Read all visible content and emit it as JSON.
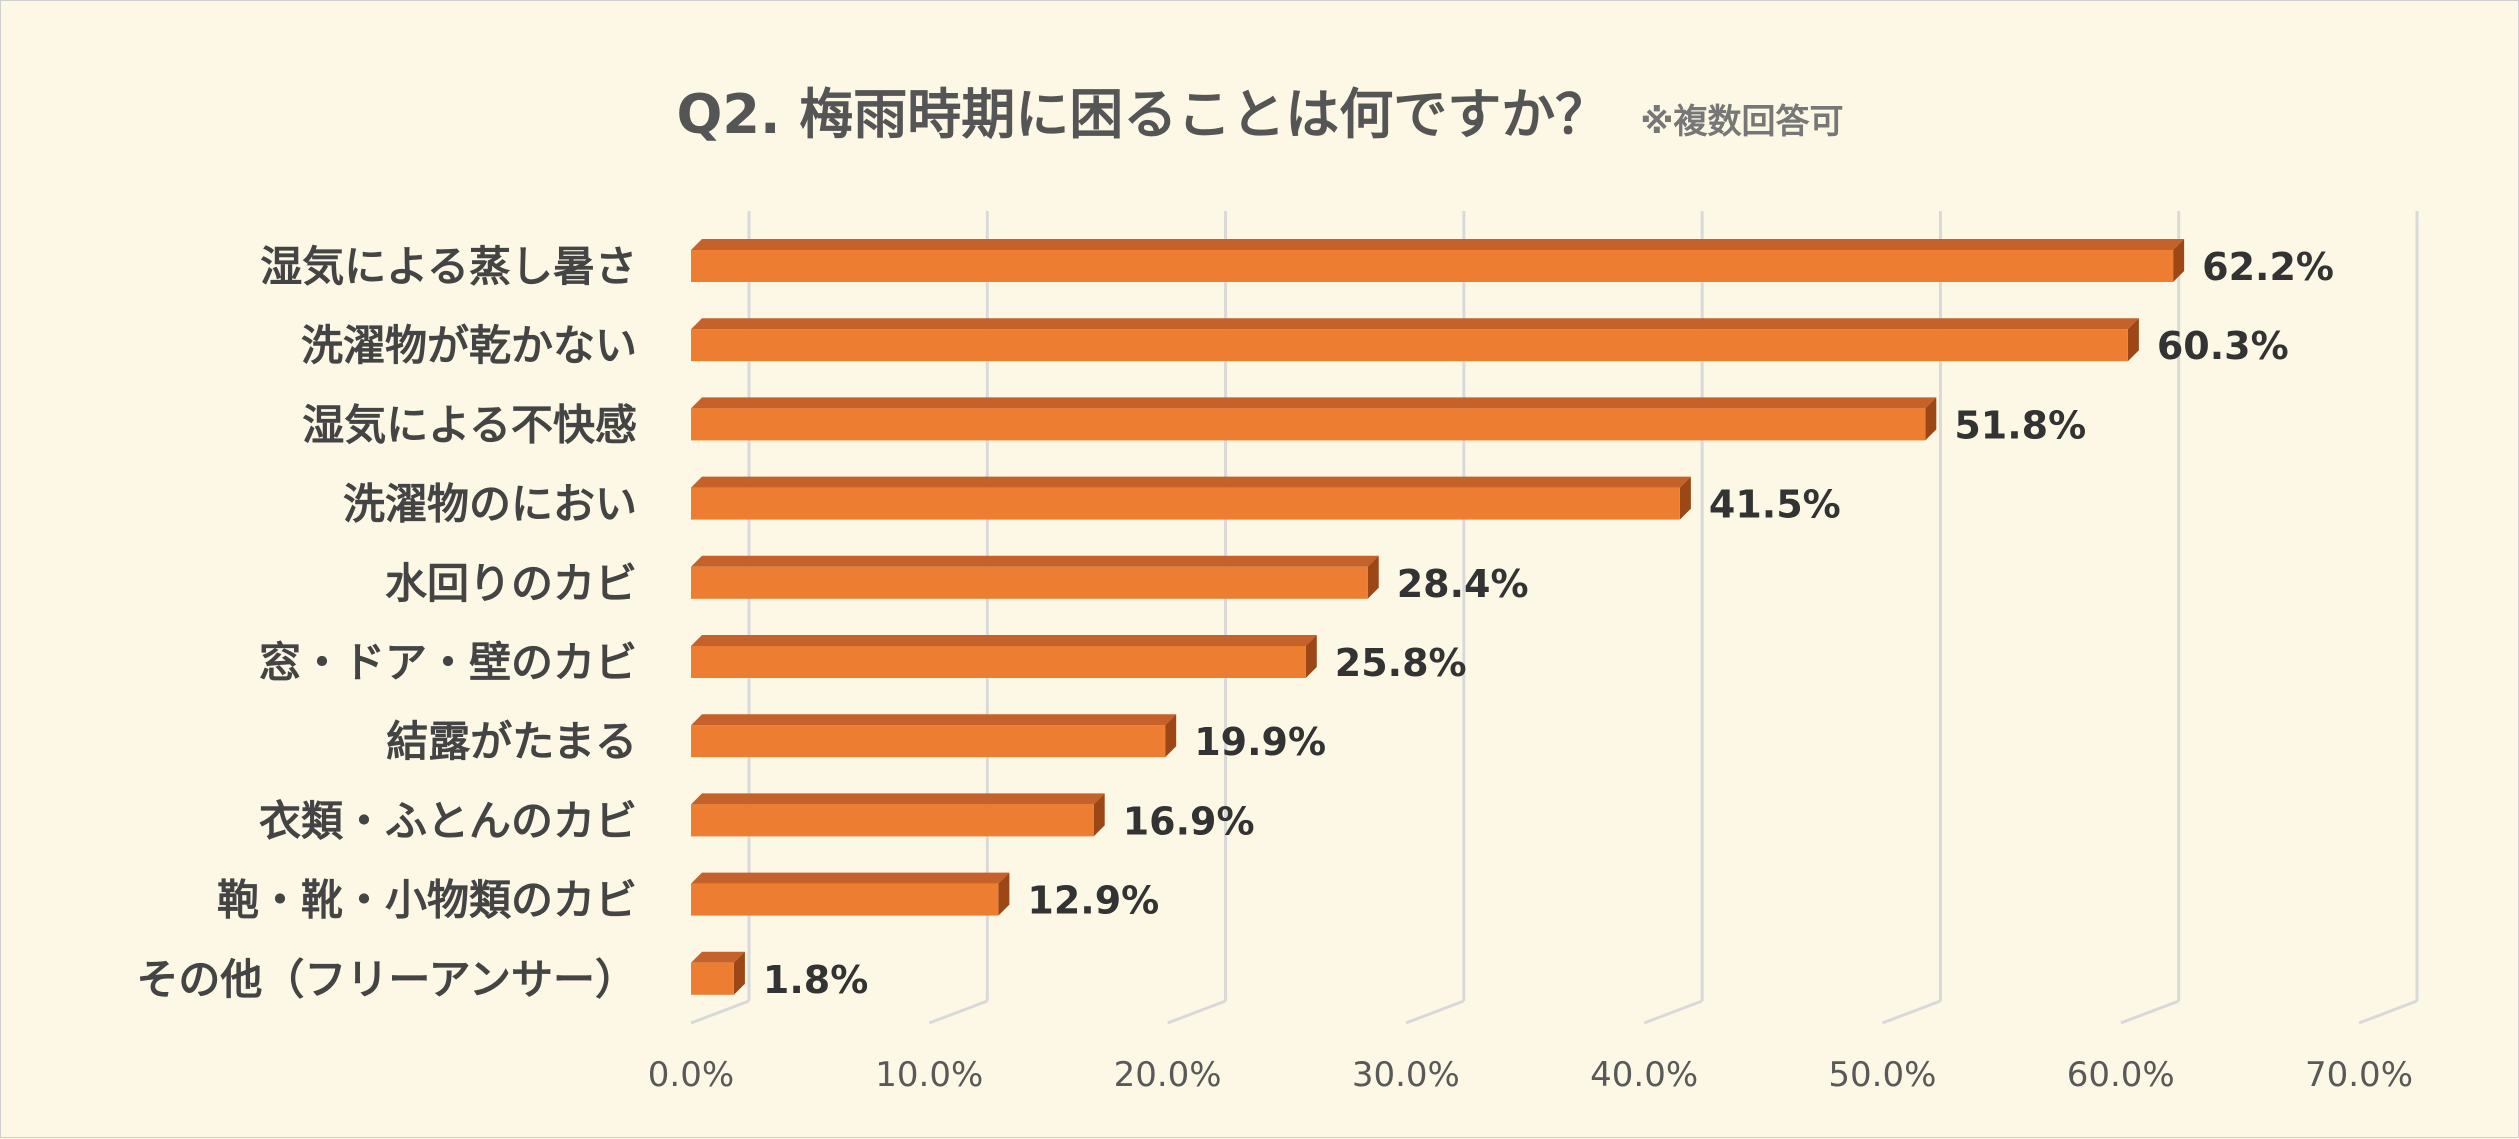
{
  "chart_data": {
    "type": "bar",
    "orientation": "horizontal",
    "title": "Q2. 梅雨時期に困ることは何ですか？",
    "subtitle": "※複数回答可",
    "categories": [
      "湿気による蒸し暑さ",
      "洗濯物が乾かない",
      "湿気による不快感",
      "洗濯物のにおい",
      "水回りのカビ",
      "窓・ドア・壁のカビ",
      "結露がたまる",
      "衣類・ふとんのカビ",
      "鞄・靴・小物類のカビ",
      "その他（フリーアンサー）"
    ],
    "values": [
      62.2,
      60.3,
      51.8,
      41.5,
      28.4,
      25.8,
      19.9,
      16.9,
      12.9,
      1.8
    ],
    "value_labels": [
      "62.2%",
      "60.3%",
      "51.8%",
      "41.5%",
      "28.4%",
      "25.8%",
      "19.9%",
      "16.9%",
      "12.9%",
      "1.8%"
    ],
    "xlim": [
      0,
      70
    ],
    "x_ticks": [
      0,
      10,
      20,
      30,
      40,
      50,
      60,
      70
    ],
    "x_tick_labels": [
      "0.0%",
      "10.0%",
      "20.0%",
      "30.0%",
      "40.0%",
      "50.0%",
      "60.0%",
      "70.0%"
    ],
    "xlabel": "",
    "ylabel": "",
    "grid": true,
    "legend": "none",
    "colors": {
      "bar_front": "#ed7d31",
      "bar_top": "#c5612a",
      "bar_side": "#9c4716",
      "background": "#fdf8e6",
      "grid": "#d9d9d9"
    }
  }
}
